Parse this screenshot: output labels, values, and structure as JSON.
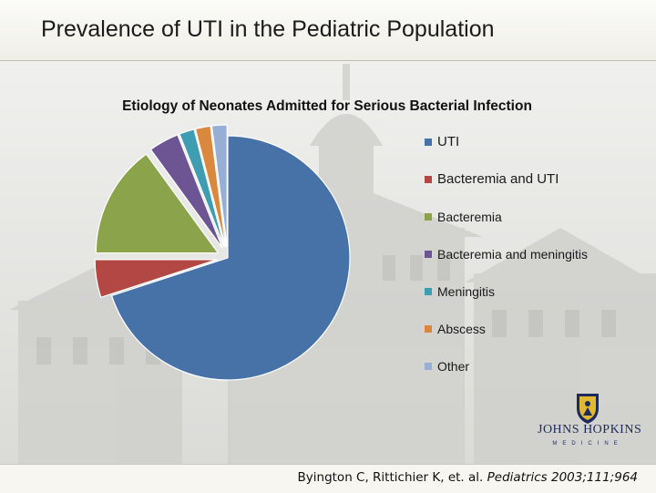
{
  "slide": {
    "title": "Prevalence of UTI in the Pediatric Population"
  },
  "chart_data": {
    "type": "pie",
    "title": "Etiology of Neonates Admitted for Serious Bacterial Infection",
    "categories": [
      "UTI",
      "Bacteremia and UTI",
      "Bacteremia",
      "Bacteremia and meningitis",
      "Meningitis",
      "Abscess",
      "Other"
    ],
    "values": [
      70,
      5,
      15,
      4,
      2,
      2,
      2
    ],
    "colors": [
      "#4672a8",
      "#b34743",
      "#8ba44c",
      "#6d5594",
      "#3f9db2",
      "#d9883d",
      "#97afd4"
    ],
    "exploded_slices": [
      "Bacteremia and UTI",
      "Bacteremia",
      "Bacteremia and meningitis",
      "Meningitis",
      "Abscess",
      "Other"
    ],
    "legend_position": "right"
  },
  "logo": {
    "name": "JOHNS HOPKINS",
    "sub": "MEDICINE"
  },
  "citation": {
    "authors": "Byington C, Rittichier K, et. al.",
    "journal": "Pediatrics 2003;111;964"
  }
}
